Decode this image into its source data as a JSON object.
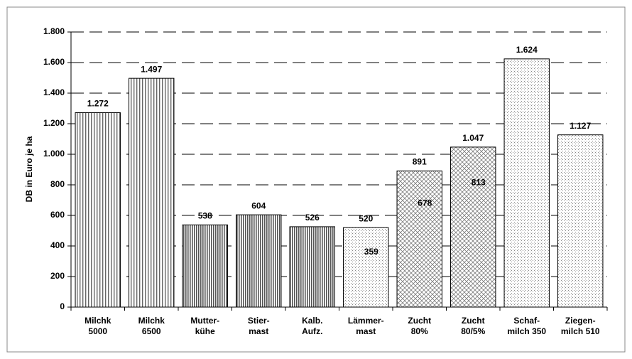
{
  "chart_data": {
    "type": "bar",
    "y_axis_label": "DB in Euro je ha",
    "categories": [
      [
        "Milchk",
        "5000"
      ],
      [
        "Milchk",
        "6500"
      ],
      [
        "Mutter-",
        "kühe"
      ],
      [
        "Stier-",
        "mast"
      ],
      [
        "Kalb.",
        "Aufz."
      ],
      [
        "Lämmer-",
        "mast"
      ],
      [
        "Zucht",
        "80%"
      ],
      [
        "Zucht",
        "80/5%"
      ],
      [
        "Schaf-",
        "milch 350"
      ],
      [
        "Ziegen-",
        "milch 510"
      ]
    ],
    "values": [
      1272,
      1497,
      538,
      604,
      526,
      520,
      891,
      1047,
      1624,
      1127
    ],
    "value_labels": [
      "1.272",
      "1.497",
      "538",
      "604",
      "526",
      "520",
      "891",
      "1.047",
      "1.624",
      "1.127"
    ],
    "inner_values": [
      null,
      null,
      null,
      null,
      null,
      359,
      678,
      813,
      null,
      null
    ],
    "patterns": [
      "stripes-wide",
      "stripes-wide",
      "stripes-dense",
      "stripes-dense",
      "stripes-dense",
      "dots-light",
      "checks",
      "checks",
      "dots-light",
      "dots-light"
    ],
    "ylim": [
      0,
      1800
    ],
    "yticks": [
      0,
      200,
      400,
      600,
      800,
      {
        "value": 1000,
        "label": "1.000"
      },
      {
        "value": 1200,
        "label": "1.200"
      },
      {
        "value": 1400,
        "label": "1.400"
      },
      {
        "value": 1600,
        "label": "1.600"
      },
      {
        "value": 1800,
        "label": "1.800"
      }
    ],
    "grid": true
  }
}
